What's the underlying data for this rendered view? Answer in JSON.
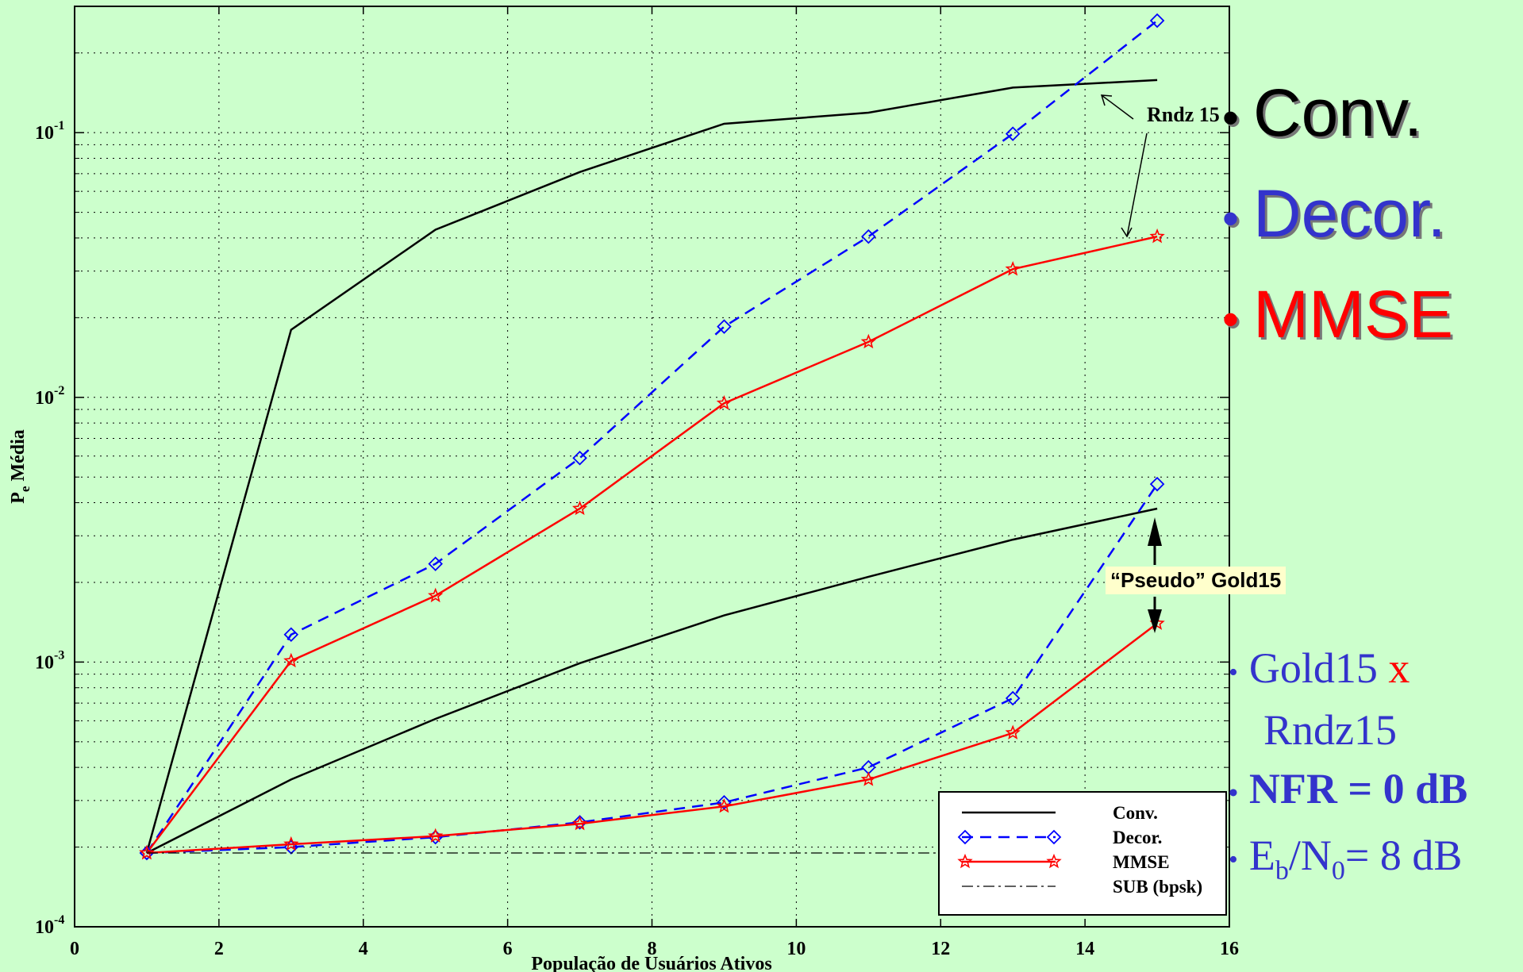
{
  "chart_data": {
    "type": "line",
    "xlabel": "População de Usuários Ativos",
    "ylabel": "P",
    "ylabel_sub": "e",
    "ylabel_rest": " Média",
    "xlim": [
      0,
      16
    ],
    "ylim": [
      0.0001,
      0.3
    ],
    "yscale": "log",
    "grid": true,
    "x_ticks": [
      "0",
      "2",
      "4",
      "6",
      "8",
      "10",
      "12",
      "14",
      "16"
    ],
    "y_ticks": [
      {
        "base": "10",
        "exp": "-1",
        "value": 0.1
      },
      {
        "base": "10",
        "exp": "-2",
        "value": 0.01
      },
      {
        "base": "10",
        "exp": "-3",
        "value": 0.001
      },
      {
        "base": "10",
        "exp": "-4",
        "value": 0.0001
      }
    ],
    "series": [
      {
        "name": "Conv.",
        "group": "Rndz 15",
        "style": "conv",
        "color": "#000000",
        "x": [
          1,
          3,
          5,
          7,
          9,
          11,
          13,
          15
        ],
        "y": [
          0.00019,
          0.018,
          0.043,
          0.071,
          0.108,
          0.119,
          0.148,
          0.158
        ]
      },
      {
        "name": "Decor.",
        "group": "Rndz 15",
        "style": "decor",
        "color": "#0000ff",
        "x": [
          1,
          3,
          5,
          7,
          9,
          11,
          13,
          15
        ],
        "y": [
          0.00019,
          0.00127,
          0.00235,
          0.0059,
          0.0185,
          0.0405,
          0.099,
          0.265
        ]
      },
      {
        "name": "MMSE",
        "group": "Rndz 15",
        "style": "mmse",
        "color": "#ff0000",
        "x": [
          1,
          3,
          5,
          7,
          9,
          11,
          13,
          15
        ],
        "y": [
          0.00019,
          0.00101,
          0.00178,
          0.0038,
          0.0095,
          0.0162,
          0.0305,
          0.0405
        ]
      },
      {
        "name": "Conv.",
        "group": "Pseudo Gold15",
        "style": "conv",
        "color": "#000000",
        "x": [
          1,
          3,
          5,
          7,
          9,
          11,
          13,
          15
        ],
        "y": [
          0.00019,
          0.00036,
          0.00061,
          0.00099,
          0.0015,
          0.0021,
          0.0029,
          0.0038
        ]
      },
      {
        "name": "Decor.",
        "group": "Pseudo Gold15",
        "style": "decor",
        "color": "#0000ff",
        "x": [
          1,
          3,
          5,
          7,
          9,
          11,
          13,
          15
        ],
        "y": [
          0.00019,
          0.0002,
          0.000218,
          0.000248,
          0.000295,
          0.0004,
          0.00073,
          0.0047
        ]
      },
      {
        "name": "MMSE",
        "group": "Pseudo Gold15",
        "style": "mmse",
        "color": "#ff0000",
        "x": [
          1,
          3,
          5,
          7,
          9,
          11,
          13,
          15
        ],
        "y": [
          0.00019,
          0.000205,
          0.00022,
          0.000245,
          0.000285,
          0.00036,
          0.00054,
          0.0014
        ]
      },
      {
        "name": "SUB (bpsk)",
        "group": "SUB",
        "style": "sub",
        "color": "#000000",
        "x": [
          1,
          15
        ],
        "y": [
          0.00019,
          0.00019
        ]
      }
    ],
    "legend": {
      "placement": "bottom-right",
      "entries": [
        {
          "label": "Conv.",
          "style": "conv"
        },
        {
          "label": "Decor.",
          "style": "decor"
        },
        {
          "label": "MMSE",
          "style": "mmse"
        },
        {
          "label": "SUB (bpsk)",
          "style": "sub"
        }
      ]
    },
    "annotations": {
      "rndz": "Rndz 15",
      "gold": "“Pseudo” Gold15"
    }
  },
  "bullets": {
    "dot": "•",
    "items": [
      {
        "label": "Conv.",
        "color": "#000000"
      },
      {
        "label": "Decor.",
        "color": "#3333cc"
      },
      {
        "label": "MMSE",
        "color": "#ff0000"
      }
    ]
  },
  "notes": {
    "dot": "•",
    "gold": "Gold15",
    "x": "x",
    "rndz": "Rndz15",
    "nfr": "NFR = 0 dB",
    "eb": "E",
    "eb_sub": "b",
    "slash_n": "/N",
    "n_sub": "0",
    "eb_rest": "= 8 dB"
  }
}
